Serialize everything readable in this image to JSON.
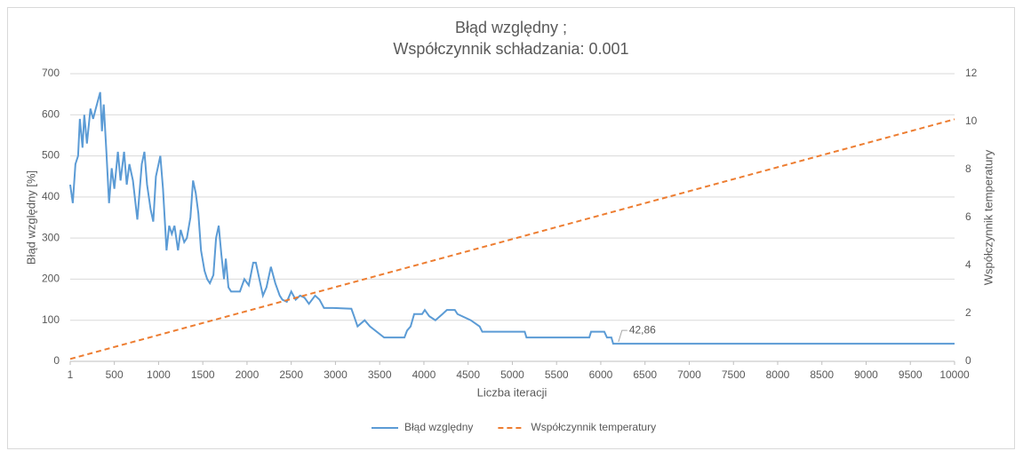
{
  "chart_data": {
    "type": "line",
    "title": "Błąd względny ;",
    "subtitle": "Współczynnik schładzania: 0.001",
    "x_label": "Liczba iteracji",
    "y_label": "Błąd względny [%]",
    "y2_label": "Współczynnik temperatury",
    "xlim": [
      1,
      10000
    ],
    "xticks": [
      1,
      500,
      1000,
      1500,
      2000,
      2500,
      3000,
      3500,
      4000,
      4500,
      5000,
      5500,
      6000,
      6500,
      7000,
      7500,
      8000,
      8500,
      9000,
      9500,
      10000
    ],
    "ylim": [
      0,
      700
    ],
    "yticks": [
      0,
      100,
      200,
      300,
      400,
      500,
      600,
      700
    ],
    "y2lim": [
      0,
      12
    ],
    "y2ticks": [
      0,
      2,
      4,
      6,
      8,
      10,
      12
    ],
    "grid": true,
    "legend": "bottom",
    "series": [
      {
        "name": "Błąd względny",
        "color": "#5b9bd5",
        "dash": false,
        "x": [
          1,
          30,
          60,
          90,
          110,
          140,
          160,
          190,
          230,
          260,
          290,
          340,
          360,
          380,
          410,
          440,
          470,
          500,
          540,
          570,
          610,
          640,
          670,
          710,
          760,
          810,
          840,
          870,
          910,
          940,
          970,
          1020,
          1050,
          1090,
          1120,
          1150,
          1180,
          1220,
          1250,
          1290,
          1320,
          1360,
          1390,
          1420,
          1450,
          1480,
          1520,
          1550,
          1580,
          1620,
          1650,
          1680,
          1710,
          1740,
          1760,
          1790,
          1820,
          1870,
          1920,
          1970,
          2020,
          2070,
          2100,
          2140,
          2180,
          2220,
          2270,
          2320,
          2370,
          2400,
          2450,
          2500,
          2550,
          2600,
          2650,
          2700,
          2770,
          2820,
          2870,
          2970,
          3180,
          3210,
          3250,
          3330,
          3390,
          3550,
          3780,
          3810,
          3850,
          3890,
          3980,
          4010,
          4060,
          4130,
          4210,
          4260,
          4350,
          4380,
          4530,
          4630,
          4660,
          5140,
          5160,
          5870,
          5890,
          6040,
          6070,
          6120,
          6140,
          10000
        ],
        "values": [
          430,
          385,
          480,
          500,
          590,
          520,
          600,
          530,
          615,
          590,
          615,
          655,
          560,
          625,
          510,
          385,
          470,
          420,
          510,
          440,
          510,
          430,
          480,
          440,
          345,
          480,
          510,
          430,
          370,
          340,
          450,
          500,
          420,
          270,
          330,
          310,
          330,
          270,
          320,
          290,
          300,
          350,
          440,
          410,
          360,
          270,
          220,
          200,
          190,
          210,
          300,
          330,
          260,
          200,
          250,
          180,
          170,
          170,
          170,
          200,
          185,
          240,
          240,
          200,
          160,
          180,
          230,
          190,
          160,
          150,
          145,
          170,
          150,
          160,
          155,
          140,
          160,
          150,
          130,
          130,
          128,
          110,
          85,
          100,
          85,
          58,
          58,
          75,
          85,
          115,
          115,
          125,
          110,
          100,
          115,
          125,
          125,
          115,
          100,
          85,
          72,
          72,
          58,
          58,
          72,
          72,
          58,
          58,
          42.86,
          42.86
        ]
      },
      {
        "name": "Współczynnik temperatury",
        "color": "#ed7d31",
        "dash": true,
        "axis": "y2",
        "x": [
          1,
          10000
        ],
        "values": [
          0.1,
          10.1
        ]
      }
    ],
    "annotations": [
      {
        "label": "42,86",
        "value": 42.86,
        "x": 6300
      }
    ]
  }
}
